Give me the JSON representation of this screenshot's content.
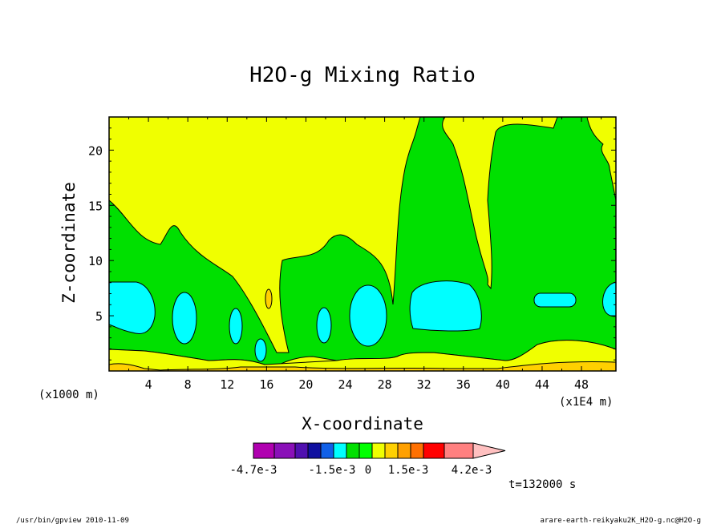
{
  "chart_data": {
    "type": "heatmap",
    "title": "H2O-g Mixing Ratio",
    "xlabel": "X-coordinate",
    "ylabel": "Z-coordinate",
    "x_units": "(x1E4 m)",
    "y_units": "(x1000 m)",
    "xlim": [
      0,
      51.5
    ],
    "ylim": [
      0,
      23
    ],
    "x_ticks": [
      "4",
      "8",
      "12",
      "16",
      "20",
      "24",
      "28",
      "32",
      "36",
      "40",
      "44",
      "48"
    ],
    "y_ticks": [
      "5",
      "10",
      "15",
      "20"
    ],
    "time_label": "t=132000 s",
    "colorbar": {
      "colors": [
        "#b000b0",
        "#8a10b8",
        "#5010b0",
        "#1010a0",
        "#1060e8",
        "#00ffff",
        "#00e000",
        "#00ff00",
        "#f0ff00",
        "#ffd000",
        "#ffa000",
        "#ff7000",
        "#ff0000",
        "#ff8080",
        "#ffc0c0"
      ],
      "labels": [
        "-4.7e-3",
        "-1.5e-3",
        "0",
        "1.5e-3",
        "4.2e-3"
      ]
    },
    "field_colors": {
      "background": "#f0ff00",
      "band1": "#00e000",
      "band2": "#00ffff",
      "band3": "#ffd000"
    }
  },
  "footer": {
    "left": "/usr/bin/gpview  2010-11-09",
    "right": "arare-earth-reikyaku2K_H2O-g.nc@H2O-g"
  }
}
